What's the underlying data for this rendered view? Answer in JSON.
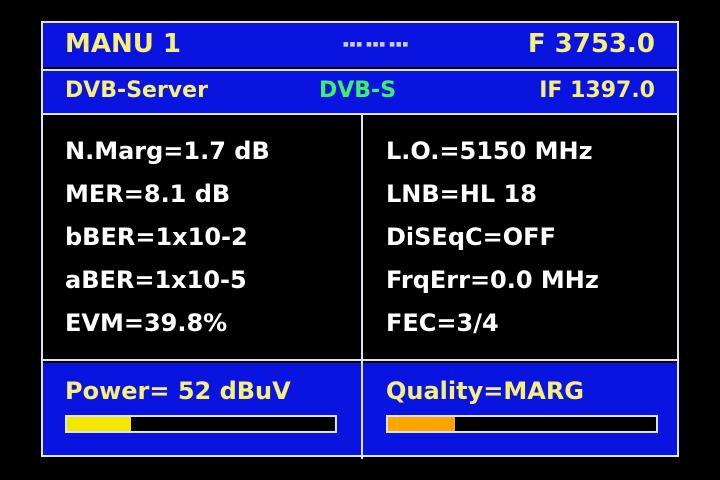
{
  "header": {
    "mode": "MANU 1",
    "frequency": "F 3753.0"
  },
  "subheader": {
    "service": "DVB-Server",
    "standard": "DVB-S",
    "if": "IF 1397.0"
  },
  "left_params": [
    "N.Marg=1.7 dB",
    "MER=8.1 dB",
    "bBER=1x10-2",
    "aBER=1x10-5",
    "EVM=39.8%"
  ],
  "right_params": [
    "L.O.=5150 MHz",
    "LNB=HL 18",
    "DiSEqC=OFF",
    "FrqErr=0.0 MHz",
    "FEC=3/4"
  ],
  "power": {
    "label": "Power=  52 dBuV",
    "level_percent": 24,
    "color": "#f5e800"
  },
  "quality": {
    "label": "Quality=MARG",
    "level_percent": 25,
    "color": "#ffa500"
  },
  "colors": {
    "panel": "#0a14e0",
    "text": "#f6ef7a",
    "standard": "#3df06a"
  }
}
